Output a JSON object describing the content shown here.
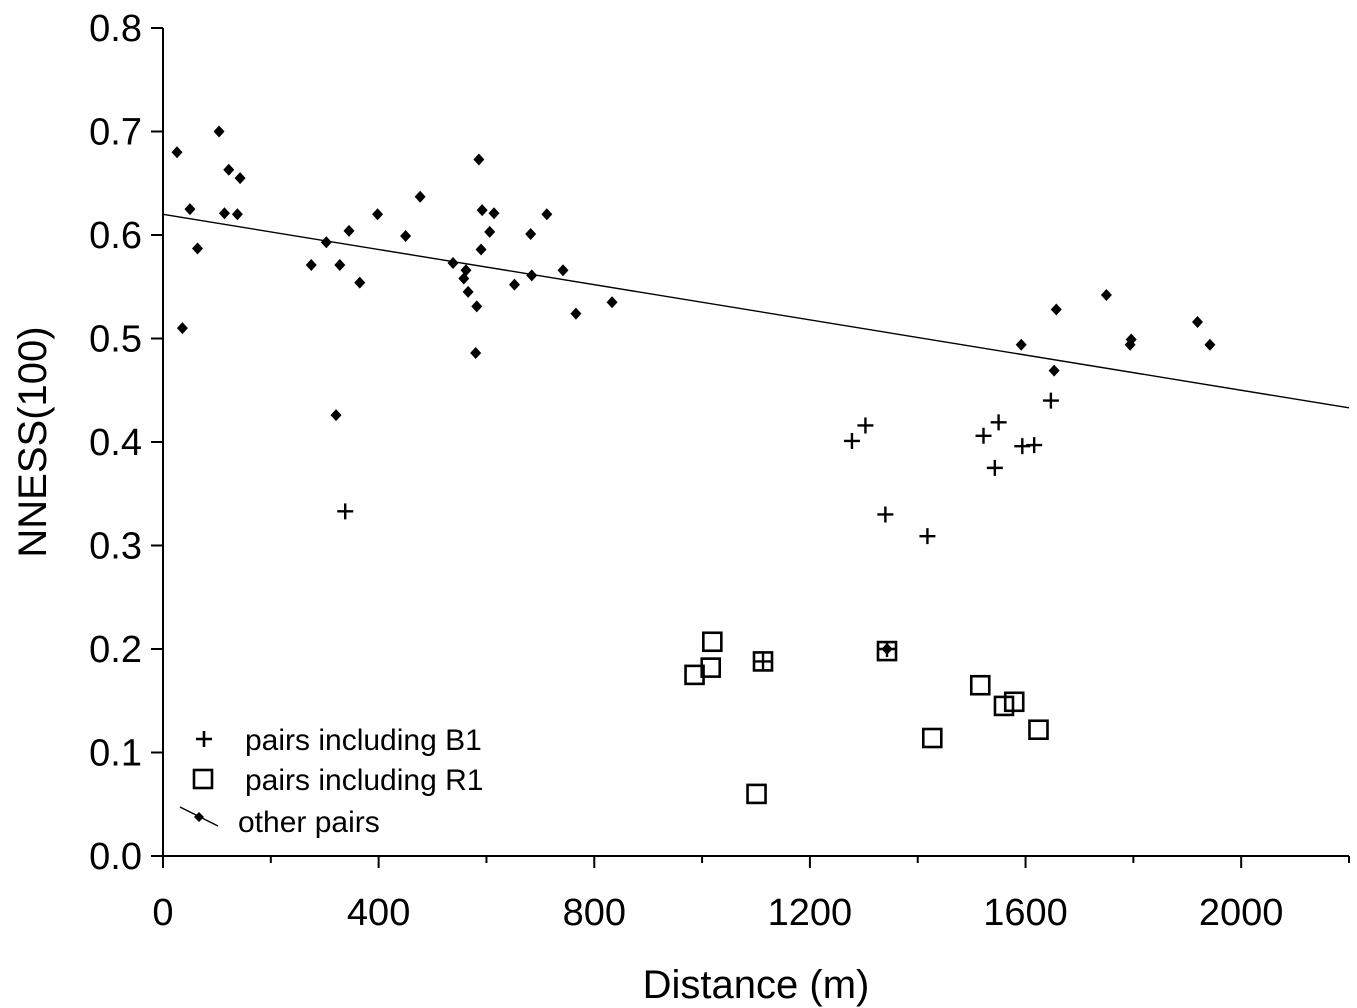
{
  "chart_data": {
    "type": "scatter",
    "title": "",
    "xlabel": "Distance (m)",
    "ylabel": "NNESS(100)",
    "xlim": [
      0,
      2200
    ],
    "ylim": [
      0.0,
      0.8
    ],
    "xticks": [
      0,
      400,
      800,
      1200,
      1600,
      2000
    ],
    "xtick_labels": [
      "0",
      "400",
      "800",
      "1200",
      "1600",
      "2000"
    ],
    "yticks": [
      0.0,
      0.1,
      0.2,
      0.3,
      0.4,
      0.5,
      0.6,
      0.7,
      0.8
    ],
    "ytick_labels": [
      "0.0",
      "0.1",
      "0.2",
      "0.3",
      "0.4",
      "0.5",
      "0.6",
      "0.7",
      "0.8"
    ],
    "grid": false,
    "legend_position": "bottom-left",
    "series": [
      {
        "name": "pairs including B1",
        "marker": "plus",
        "points": [
          [
            338,
            0.333
          ],
          [
            1278,
            0.401
          ],
          [
            1303,
            0.416
          ],
          [
            1340,
            0.33
          ],
          [
            1418,
            0.309
          ],
          [
            1522,
            0.406
          ],
          [
            1543,
            0.375
          ],
          [
            1550,
            0.419
          ],
          [
            1594,
            0.396
          ],
          [
            1616,
            0.397
          ],
          [
            1647,
            0.44
          ],
          [
            1113,
            0.188
          ],
          [
            1343,
            0.2
          ]
        ]
      },
      {
        "name": "pairs including R1",
        "marker": "square",
        "points": [
          [
            986,
            0.175
          ],
          [
            1016,
            0.182
          ],
          [
            1019,
            0.207
          ],
          [
            1101,
            0.06
          ],
          [
            1113,
            0.188
          ],
          [
            1343,
            0.198
          ],
          [
            1427,
            0.114
          ],
          [
            1516,
            0.165
          ],
          [
            1560,
            0.145
          ],
          [
            1579,
            0.149
          ],
          [
            1624,
            0.122
          ]
        ]
      },
      {
        "name": "other pairs",
        "marker": "diamond",
        "points": [
          [
            26,
            0.68
          ],
          [
            36,
            0.51
          ],
          [
            50,
            0.625
          ],
          [
            64,
            0.587
          ],
          [
            104,
            0.7
          ],
          [
            114,
            0.621
          ],
          [
            122,
            0.663
          ],
          [
            138,
            0.62
          ],
          [
            143,
            0.655
          ],
          [
            275,
            0.571
          ],
          [
            303,
            0.593
          ],
          [
            321,
            0.426
          ],
          [
            328,
            0.571
          ],
          [
            345,
            0.604
          ],
          [
            365,
            0.554
          ],
          [
            398,
            0.62
          ],
          [
            450,
            0.599
          ],
          [
            477,
            0.637
          ],
          [
            538,
            0.573
          ],
          [
            558,
            0.558
          ],
          [
            562,
            0.566
          ],
          [
            566,
            0.545
          ],
          [
            580,
            0.486
          ],
          [
            582,
            0.531
          ],
          [
            586,
            0.673
          ],
          [
            590,
            0.586
          ],
          [
            592,
            0.624
          ],
          [
            606,
            0.603
          ],
          [
            614,
            0.621
          ],
          [
            652,
            0.552
          ],
          [
            682,
            0.601
          ],
          [
            684,
            0.561
          ],
          [
            712,
            0.62
          ],
          [
            742,
            0.566
          ],
          [
            766,
            0.524
          ],
          [
            833,
            0.535
          ],
          [
            1343,
            0.2
          ],
          [
            1592,
            0.494
          ],
          [
            1653,
            0.469
          ],
          [
            1657,
            0.528
          ],
          [
            1750,
            0.542
          ],
          [
            1794,
            0.494
          ],
          [
            1796,
            0.499
          ],
          [
            1919,
            0.516
          ],
          [
            1942,
            0.494
          ]
        ]
      }
    ],
    "trendline": {
      "x": [
        0,
        2200
      ],
      "y": [
        0.62,
        0.433
      ]
    }
  }
}
